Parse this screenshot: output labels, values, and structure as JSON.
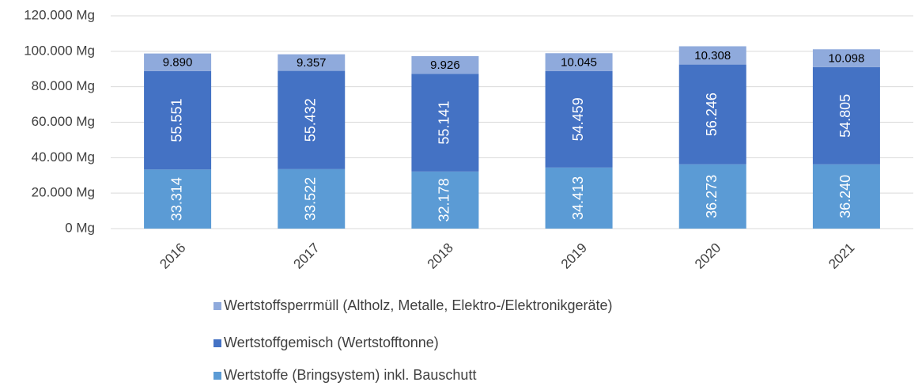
{
  "chart_data": {
    "type": "stacked_bar",
    "categories": [
      "2016",
      "2017",
      "2018",
      "2019",
      "2020",
      "2021"
    ],
    "series": [
      {
        "name": "Wertstoffe (Bringsystem) inkl. Bauschutt",
        "color": "#5b9bd5",
        "values": [
          33314,
          33522,
          32178,
          34413,
          36273,
          36240
        ],
        "value_labels": [
          "33.314",
          "33.522",
          "32.178",
          "34.413",
          "36.273",
          "36.240"
        ]
      },
      {
        "name": "Wertstoffgemisch (Wertstofftonne)",
        "color": "#4472c4",
        "values": [
          55551,
          55432,
          55141,
          54459,
          56246,
          54805
        ],
        "value_labels": [
          "55.551",
          "55.432",
          "55.141",
          "54.459",
          "56.246",
          "54.805"
        ]
      },
      {
        "name": "Wertstoffsperrmüll (Altholz, Metalle, Elektro-/Elektronikgeräte)",
        "color": "#8faadc",
        "values": [
          9890,
          9357,
          9926,
          10045,
          10308,
          10098
        ],
        "value_labels": [
          "9.890",
          "9.357",
          "9.926",
          "10.045",
          "10.308",
          "10.098"
        ]
      }
    ],
    "ylim": [
      0,
      120000
    ],
    "yticks": [
      {
        "value": 0,
        "label": "0 Mg"
      },
      {
        "value": 20000,
        "label": "20.000 Mg"
      },
      {
        "value": 40000,
        "label": "40.000 Mg"
      },
      {
        "value": 60000,
        "label": "60.000 Mg"
      },
      {
        "value": 80000,
        "label": "80.000 Mg"
      },
      {
        "value": 100000,
        "label": "100.000 Mg"
      },
      {
        "value": 120000,
        "label": "120.000 Mg"
      }
    ],
    "grid": true
  }
}
